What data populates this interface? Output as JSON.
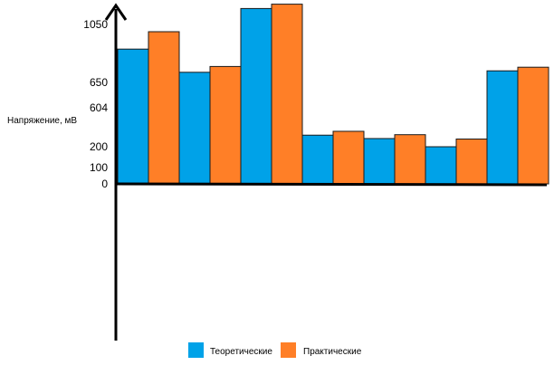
{
  "chart_data": {
    "type": "bar",
    "ylabel": "Напряжение, мВ",
    "yticks": [
      0,
      100,
      200,
      604,
      650,
      1050
    ],
    "series": [
      {
        "name": "Теоретические",
        "color": "#00a2e8",
        "values": [
          880,
          720,
          1160,
          320,
          285,
          200,
          730
        ]
      },
      {
        "name": "Практические",
        "color": "#ff7f27",
        "values": [
          1000,
          760,
          1190,
          360,
          325,
          280,
          755
        ]
      }
    ]
  }
}
